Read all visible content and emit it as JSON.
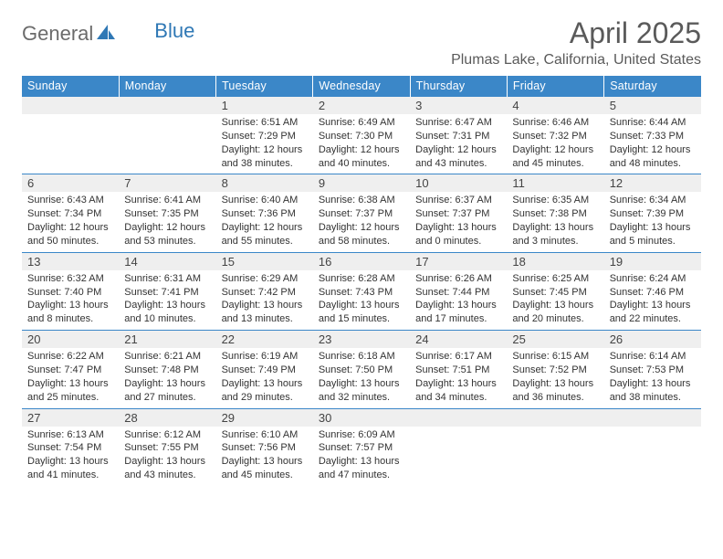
{
  "brand": {
    "textA": "General",
    "textB": "Blue"
  },
  "header": {
    "title": "April 2025",
    "location": "Plumas Lake, California, United States"
  },
  "colors": {
    "headerBlue": "#3b87c8",
    "grayText": "#5a5a5a",
    "brandGray": "#6b6b6b",
    "brandBlue": "#2f78b5",
    "cellHeaderBg": "#efefef",
    "ruleBlue": "#3b87c8"
  },
  "days": [
    "Sunday",
    "Monday",
    "Tuesday",
    "Wednesday",
    "Thursday",
    "Friday",
    "Saturday"
  ],
  "weeks": [
    [
      {
        "n": "",
        "sunrise": "",
        "sunset": "",
        "daylight": ""
      },
      {
        "n": "",
        "sunrise": "",
        "sunset": "",
        "daylight": ""
      },
      {
        "n": "1",
        "sunrise": "Sunrise: 6:51 AM",
        "sunset": "Sunset: 7:29 PM",
        "daylight": "Daylight: 12 hours and 38 minutes."
      },
      {
        "n": "2",
        "sunrise": "Sunrise: 6:49 AM",
        "sunset": "Sunset: 7:30 PM",
        "daylight": "Daylight: 12 hours and 40 minutes."
      },
      {
        "n": "3",
        "sunrise": "Sunrise: 6:47 AM",
        "sunset": "Sunset: 7:31 PM",
        "daylight": "Daylight: 12 hours and 43 minutes."
      },
      {
        "n": "4",
        "sunrise": "Sunrise: 6:46 AM",
        "sunset": "Sunset: 7:32 PM",
        "daylight": "Daylight: 12 hours and 45 minutes."
      },
      {
        "n": "5",
        "sunrise": "Sunrise: 6:44 AM",
        "sunset": "Sunset: 7:33 PM",
        "daylight": "Daylight: 12 hours and 48 minutes."
      }
    ],
    [
      {
        "n": "6",
        "sunrise": "Sunrise: 6:43 AM",
        "sunset": "Sunset: 7:34 PM",
        "daylight": "Daylight: 12 hours and 50 minutes."
      },
      {
        "n": "7",
        "sunrise": "Sunrise: 6:41 AM",
        "sunset": "Sunset: 7:35 PM",
        "daylight": "Daylight: 12 hours and 53 minutes."
      },
      {
        "n": "8",
        "sunrise": "Sunrise: 6:40 AM",
        "sunset": "Sunset: 7:36 PM",
        "daylight": "Daylight: 12 hours and 55 minutes."
      },
      {
        "n": "9",
        "sunrise": "Sunrise: 6:38 AM",
        "sunset": "Sunset: 7:37 PM",
        "daylight": "Daylight: 12 hours and 58 minutes."
      },
      {
        "n": "10",
        "sunrise": "Sunrise: 6:37 AM",
        "sunset": "Sunset: 7:37 PM",
        "daylight": "Daylight: 13 hours and 0 minutes."
      },
      {
        "n": "11",
        "sunrise": "Sunrise: 6:35 AM",
        "sunset": "Sunset: 7:38 PM",
        "daylight": "Daylight: 13 hours and 3 minutes."
      },
      {
        "n": "12",
        "sunrise": "Sunrise: 6:34 AM",
        "sunset": "Sunset: 7:39 PM",
        "daylight": "Daylight: 13 hours and 5 minutes."
      }
    ],
    [
      {
        "n": "13",
        "sunrise": "Sunrise: 6:32 AM",
        "sunset": "Sunset: 7:40 PM",
        "daylight": "Daylight: 13 hours and 8 minutes."
      },
      {
        "n": "14",
        "sunrise": "Sunrise: 6:31 AM",
        "sunset": "Sunset: 7:41 PM",
        "daylight": "Daylight: 13 hours and 10 minutes."
      },
      {
        "n": "15",
        "sunrise": "Sunrise: 6:29 AM",
        "sunset": "Sunset: 7:42 PM",
        "daylight": "Daylight: 13 hours and 13 minutes."
      },
      {
        "n": "16",
        "sunrise": "Sunrise: 6:28 AM",
        "sunset": "Sunset: 7:43 PM",
        "daylight": "Daylight: 13 hours and 15 minutes."
      },
      {
        "n": "17",
        "sunrise": "Sunrise: 6:26 AM",
        "sunset": "Sunset: 7:44 PM",
        "daylight": "Daylight: 13 hours and 17 minutes."
      },
      {
        "n": "18",
        "sunrise": "Sunrise: 6:25 AM",
        "sunset": "Sunset: 7:45 PM",
        "daylight": "Daylight: 13 hours and 20 minutes."
      },
      {
        "n": "19",
        "sunrise": "Sunrise: 6:24 AM",
        "sunset": "Sunset: 7:46 PM",
        "daylight": "Daylight: 13 hours and 22 minutes."
      }
    ],
    [
      {
        "n": "20",
        "sunrise": "Sunrise: 6:22 AM",
        "sunset": "Sunset: 7:47 PM",
        "daylight": "Daylight: 13 hours and 25 minutes."
      },
      {
        "n": "21",
        "sunrise": "Sunrise: 6:21 AM",
        "sunset": "Sunset: 7:48 PM",
        "daylight": "Daylight: 13 hours and 27 minutes."
      },
      {
        "n": "22",
        "sunrise": "Sunrise: 6:19 AM",
        "sunset": "Sunset: 7:49 PM",
        "daylight": "Daylight: 13 hours and 29 minutes."
      },
      {
        "n": "23",
        "sunrise": "Sunrise: 6:18 AM",
        "sunset": "Sunset: 7:50 PM",
        "daylight": "Daylight: 13 hours and 32 minutes."
      },
      {
        "n": "24",
        "sunrise": "Sunrise: 6:17 AM",
        "sunset": "Sunset: 7:51 PM",
        "daylight": "Daylight: 13 hours and 34 minutes."
      },
      {
        "n": "25",
        "sunrise": "Sunrise: 6:15 AM",
        "sunset": "Sunset: 7:52 PM",
        "daylight": "Daylight: 13 hours and 36 minutes."
      },
      {
        "n": "26",
        "sunrise": "Sunrise: 6:14 AM",
        "sunset": "Sunset: 7:53 PM",
        "daylight": "Daylight: 13 hours and 38 minutes."
      }
    ],
    [
      {
        "n": "27",
        "sunrise": "Sunrise: 6:13 AM",
        "sunset": "Sunset: 7:54 PM",
        "daylight": "Daylight: 13 hours and 41 minutes."
      },
      {
        "n": "28",
        "sunrise": "Sunrise: 6:12 AM",
        "sunset": "Sunset: 7:55 PM",
        "daylight": "Daylight: 13 hours and 43 minutes."
      },
      {
        "n": "29",
        "sunrise": "Sunrise: 6:10 AM",
        "sunset": "Sunset: 7:56 PM",
        "daylight": "Daylight: 13 hours and 45 minutes."
      },
      {
        "n": "30",
        "sunrise": "Sunrise: 6:09 AM",
        "sunset": "Sunset: 7:57 PM",
        "daylight": "Daylight: 13 hours and 47 minutes."
      },
      {
        "n": "",
        "sunrise": "",
        "sunset": "",
        "daylight": ""
      },
      {
        "n": "",
        "sunrise": "",
        "sunset": "",
        "daylight": ""
      },
      {
        "n": "",
        "sunrise": "",
        "sunset": "",
        "daylight": ""
      }
    ]
  ]
}
